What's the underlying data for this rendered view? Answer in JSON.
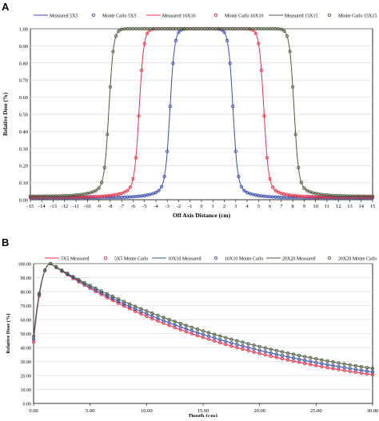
{
  "chart_data": [
    {
      "panel": "A",
      "type": "line",
      "xlabel": "Off Axis Distance (cm)",
      "ylabel": "Relative Dose (%)",
      "xlim": [
        -15,
        15
      ],
      "ylim": [
        0,
        1
      ],
      "xticks": [
        -15,
        -14,
        -13,
        -12,
        -11,
        -10,
        -9,
        -8,
        -7,
        -6,
        -5,
        -4,
        -3,
        -2,
        -1,
        0,
        1,
        2,
        3,
        4,
        5,
        6,
        7,
        8,
        9,
        10,
        11,
        12,
        13,
        14,
        15
      ],
      "yticks": [
        "0.00",
        "0.10",
        "0.20",
        "0.30",
        "0.40",
        "0.50",
        "0.60",
        "0.70",
        "0.80",
        "0.90",
        "1.00"
      ],
      "legend": {
        "placement": "top",
        "entries": [
          "Measured 5X5",
          "Monte Carlo 5X5",
          "Measured 10X10",
          "Monte Carlo 10X10",
          "Measured 15X15",
          "Monte Carlo 15X15"
        ]
      },
      "colors": {
        "5x5": "#3a4fa8",
        "10x10": "#e8334a",
        "15x15": "#4d5a3f"
      },
      "series": [
        {
          "name": "Measured 5X5",
          "field": "5x5",
          "style": "line",
          "half_width_cm": 2.75,
          "penumbra": 0.2,
          "tail_cm": 4.0,
          "base": 0.012
        },
        {
          "name": "Monte Carlo 5X5",
          "field": "5x5",
          "style": "marker",
          "half_width_cm": 2.75,
          "penumbra": 0.2,
          "tail_cm": 4.0,
          "base": 0.012
        },
        {
          "name": "Measured 10X10",
          "field": "10x10",
          "style": "line",
          "half_width_cm": 5.45,
          "penumbra": 0.2,
          "tail_cm": 4.0,
          "base": 0.015
        },
        {
          "name": "Monte Carlo 10X10",
          "field": "10x10",
          "style": "marker",
          "half_width_cm": 5.45,
          "penumbra": 0.2,
          "tail_cm": 4.0,
          "base": 0.015
        },
        {
          "name": "Measured 15X15",
          "field": "15x15",
          "style": "line",
          "half_width_cm": 8.1,
          "penumbra": 0.2,
          "tail_cm": 4.0,
          "base": 0.02
        },
        {
          "name": "Monte Carlo 15X15",
          "field": "15x15",
          "style": "marker",
          "half_width_cm": 8.1,
          "penumbra": 0.2,
          "tail_cm": 4.0,
          "base": 0.02
        }
      ],
      "grid": true
    },
    {
      "panel": "B",
      "type": "line",
      "xlabel": "Depth (cm)",
      "ylabel": "Relative Dose (%)",
      "xlim": [
        0,
        30
      ],
      "ylim": [
        0,
        100
      ],
      "xticks": [
        "0.00",
        "5.00",
        "10.00",
        "15.00",
        "20.00",
        "25.00",
        "30.00"
      ],
      "yticks": [
        "0.00",
        "10.00",
        "20.00",
        "30.00",
        "40.00",
        "50.00",
        "60.00",
        "70.00",
        "80.00",
        "90.00",
        "100.00"
      ],
      "legend": {
        "placement": "top",
        "entries": [
          "5X5 Measured",
          "5X5 Monte Carlo",
          "10X10 Measured",
          "10X10 Monte Carlo",
          "20X20 Measured",
          "20X20 Monte Carlo"
        ]
      },
      "colors": {
        "5x5": "#e8334a",
        "10x10": "#3a4fa8",
        "20x20": "#4d5a3f"
      },
      "series": [
        {
          "name": "5X5 Measured",
          "field": "5x5",
          "style": "line",
          "surface": 44,
          "dmax_cm": 1.5,
          "end_value": 20.5
        },
        {
          "name": "5X5 Monte Carlo",
          "field": "5x5",
          "style": "marker",
          "surface": 44,
          "dmax_cm": 1.5,
          "end_value": 20.5
        },
        {
          "name": "10X10 Measured",
          "field": "10x10",
          "style": "line",
          "surface": 46,
          "dmax_cm": 1.5,
          "end_value": 22.5
        },
        {
          "name": "10X10 Monte Carlo",
          "field": "10x10",
          "style": "marker",
          "surface": 46,
          "dmax_cm": 1.5,
          "end_value": 22.5
        },
        {
          "name": "20X20 Measured",
          "field": "20x20",
          "style": "line",
          "surface": 48,
          "dmax_cm": 1.5,
          "end_value": 25.0
        },
        {
          "name": "20X20 Monte Carlo",
          "field": "20x20",
          "style": "marker",
          "surface": 48,
          "dmax_cm": 1.5,
          "end_value": 25.0
        }
      ],
      "grid": true
    }
  ]
}
